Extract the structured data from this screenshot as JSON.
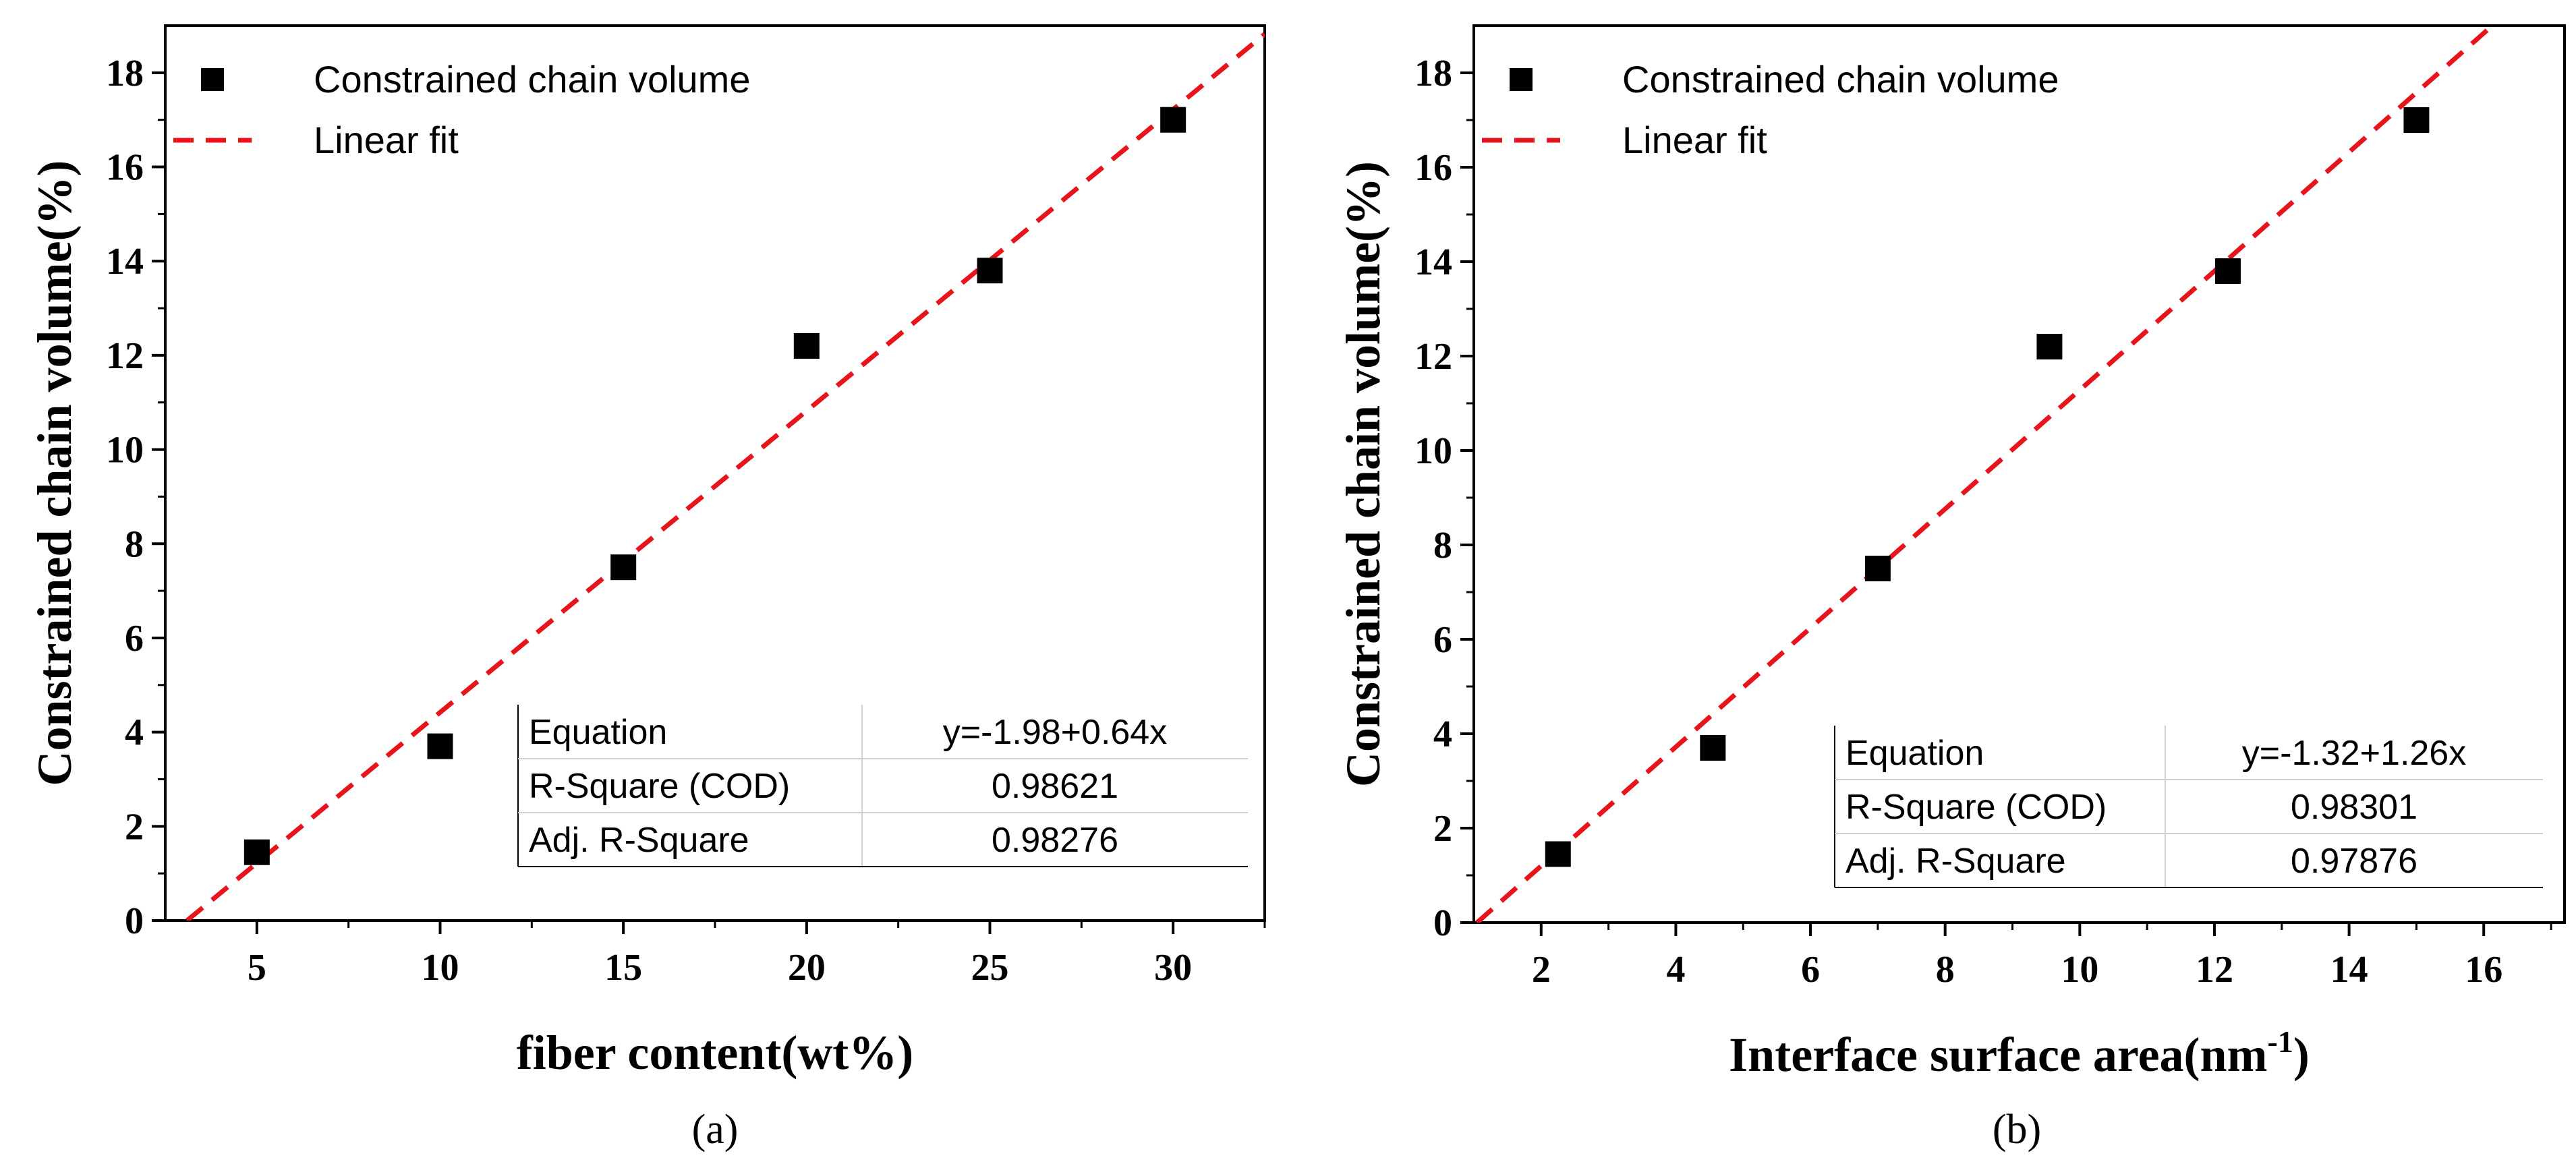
{
  "chart_data": [
    {
      "type": "scatter",
      "title": "",
      "caption": "(a)",
      "xlabel": "fiber content(wt%)",
      "ylabel": "Constrained chain volume(%)",
      "xlim": [
        2.5,
        32.5
      ],
      "ylim": [
        0,
        19
      ],
      "xticks": [
        5,
        10,
        15,
        20,
        25,
        30
      ],
      "yticks": [
        0,
        2,
        4,
        6,
        8,
        10,
        12,
        14,
        16,
        18
      ],
      "legend": {
        "position": "top-left",
        "entries": [
          {
            "label": "Constrained chain volume",
            "marker": "square"
          },
          {
            "label": "Linear fit",
            "marker": "dashed-line"
          }
        ]
      },
      "series": [
        {
          "name": "Constrained chain volume",
          "x": [
            5,
            10,
            15,
            20,
            25,
            30
          ],
          "y": [
            1.45,
            3.7,
            7.5,
            12.2,
            13.8,
            17.0
          ]
        }
      ],
      "fit": {
        "intercept": -1.98,
        "slope": 0.64,
        "color": "#e8141b"
      },
      "fit_table": [
        {
          "key": "Equation",
          "value": "y=-1.98+0.64x"
        },
        {
          "key": "R-Square (COD)",
          "value": "0.98621"
        },
        {
          "key": "Adj. R-Square",
          "value": "0.98276"
        }
      ]
    },
    {
      "type": "scatter",
      "title": "",
      "caption": "(b)",
      "xlabel": "Interface surface area(nm",
      "xlabel_sup": "-1",
      "xlabel_tail": ")",
      "ylabel": "Constrained chain volume(%)",
      "xlim": [
        1,
        17.2
      ],
      "ylim": [
        0,
        19
      ],
      "xticks": [
        2,
        4,
        6,
        8,
        10,
        12,
        14,
        16
      ],
      "yticks": [
        0,
        2,
        4,
        6,
        8,
        10,
        12,
        14,
        16,
        18
      ],
      "legend": {
        "position": "top-left",
        "entries": [
          {
            "label": "Constrained chain volume",
            "marker": "square"
          },
          {
            "label": "Linear fit",
            "marker": "dashed-line"
          }
        ]
      },
      "series": [
        {
          "name": "Constrained chain volume",
          "x": [
            2.25,
            4.55,
            7.0,
            9.55,
            12.2,
            15.0
          ],
          "y": [
            1.45,
            3.7,
            7.5,
            12.2,
            13.8,
            17.0
          ]
        }
      ],
      "fit": {
        "intercept": -1.32,
        "slope": 1.26,
        "color": "#e8141b"
      },
      "fit_table": [
        {
          "key": "Equation",
          "value": "y=-1.32+1.26x"
        },
        {
          "key": "R-Square (COD)",
          "value": "0.98301"
        },
        {
          "key": "Adj. R-Square",
          "value": "0.97876"
        }
      ]
    }
  ]
}
